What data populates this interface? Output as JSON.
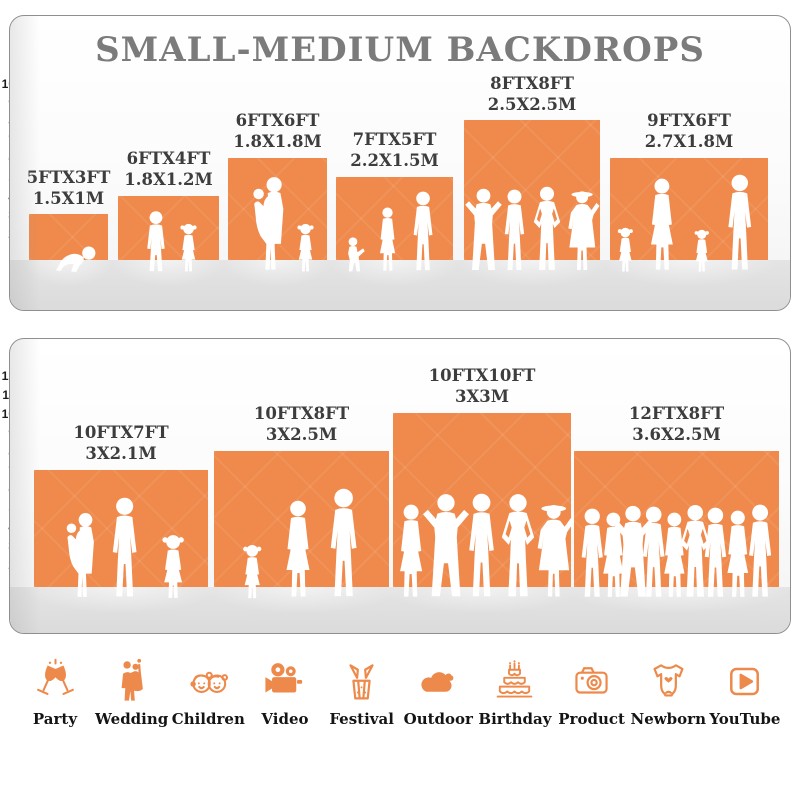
{
  "title": "SMALL-MEDIUM BACKDROPS",
  "panels": [
    {
      "id": "small",
      "ruler_ticks": 10,
      "items": [
        {
          "size_ft": "5FTX3FT",
          "size_m": "1.5X1M",
          "width_ft": 5,
          "height_ft": 3,
          "figures": "baby"
        },
        {
          "size_ft": "6FTX4FT",
          "size_m": "1.8X1.2M",
          "width_ft": 6,
          "height_ft": 4,
          "figures": "boy,girl"
        },
        {
          "size_ft": "6FTX6FT",
          "size_m": "1.8X1.8M",
          "width_ft": 6,
          "height_ft": 6,
          "figures": "mom-baby,girl"
        },
        {
          "size_ft": "7FTX5FT",
          "size_m": "2.2X1.5M",
          "width_ft": 7,
          "height_ft": 5,
          "figures": "toddler,woman,man"
        },
        {
          "size_ft": "8FTX8FT",
          "size_m": "2.5X2.5M",
          "width_ft": 8,
          "height_ft": 8,
          "figures": "man-armsup,man,man-akimbo,woman-hat"
        },
        {
          "size_ft": "9FTX6FT",
          "size_m": "2.7X1.8M",
          "width_ft": 9,
          "height_ft": 6,
          "figures": "girl,woman,girl,man"
        }
      ]
    },
    {
      "id": "medium",
      "ruler_ticks": 12,
      "items": [
        {
          "size_ft": "10FTX7FT",
          "size_m": "3X2.1M",
          "width_ft": 10,
          "height_ft": 7,
          "figures": "mom-baby,man,girl"
        },
        {
          "size_ft": "10FTX8FT",
          "size_m": "3X2.5M",
          "width_ft": 10,
          "height_ft": 8,
          "figures": "girl,woman,man"
        },
        {
          "size_ft": "10FTX10FT",
          "size_m": "3X3M",
          "width_ft": 10,
          "height_ft": 10,
          "figures": "woman,man-armsup,man,man-akimbo,woman-hat"
        },
        {
          "size_ft": "12FTX8FT",
          "size_m": "3.6X2.5M",
          "width_ft": 12,
          "height_ft": 8,
          "figures": "man,woman,man-armsup,man,woman,man-akimbo,man,woman,man"
        }
      ]
    }
  ],
  "categories": [
    {
      "label": "Party",
      "icon": "party"
    },
    {
      "label": "Wedding",
      "icon": "wedding"
    },
    {
      "label": "Children",
      "icon": "children"
    },
    {
      "label": "Video",
      "icon": "video"
    },
    {
      "label": "Festival",
      "icon": "festival"
    },
    {
      "label": "Outdoor",
      "icon": "outdoor"
    },
    {
      "label": "Birthday",
      "icon": "birthday"
    },
    {
      "label": "Product",
      "icon": "product"
    },
    {
      "label": "Newborn",
      "icon": "newborn"
    },
    {
      "label": "YouTube",
      "icon": "youtube"
    }
  ],
  "colors": {
    "backdrop_orange": "#EF8A4C",
    "icon_orange": "#ED8A4B",
    "title_gray": "#7B7B7B",
    "label_dark": "#3D3D3D",
    "floor_gray": "#DCDCDC",
    "figure_white": "#FFFFFF"
  }
}
